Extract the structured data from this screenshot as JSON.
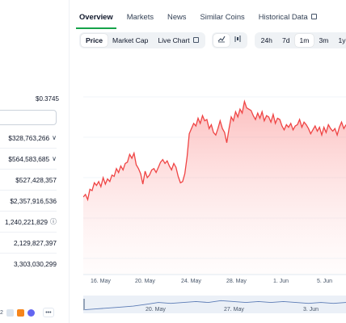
{
  "left": {
    "range_value": "$0.3745",
    "stats": [
      {
        "value": "$328,763,266",
        "suffix": "∨"
      },
      {
        "value": "$564,583,685",
        "suffix": "∨"
      },
      {
        "value": "$527,428,357",
        "suffix": ""
      },
      {
        "value": "$2,357,916,536",
        "suffix": ""
      },
      {
        "value": "1,240,221,829",
        "suffix": "ⓘ"
      },
      {
        "value": "2,129,827,397",
        "suffix": ""
      },
      {
        "value": "3,303,030,299",
        "suffix": ""
      }
    ],
    "icons_text": "2",
    "more_label": "•••"
  },
  "nav": {
    "tabs": [
      "Overview",
      "Markets",
      "News",
      "Similar Coins",
      "Historical Data"
    ]
  },
  "toolbar": {
    "chart_type": [
      "Price",
      "Market Cap",
      "Live Chart"
    ],
    "ranges": [
      "24h",
      "7d",
      "1m",
      "3m",
      "1y"
    ],
    "active_range": "1m"
  },
  "chart_data": {
    "type": "area",
    "x_labels": [
      "16. May",
      "20. May",
      "24. May",
      "28. May",
      "1. Jun",
      "5. Jun"
    ],
    "navigator_labels": [
      "20. May",
      "27. May",
      "3. Jun"
    ],
    "color": "#ef4444",
    "series": [
      {
        "values": [
          0.33,
          0.332,
          0.328,
          0.336,
          0.335,
          0.341,
          0.339,
          0.342,
          0.338,
          0.345,
          0.34,
          0.344,
          0.342,
          0.347,
          0.346,
          0.352,
          0.349,
          0.354,
          0.351,
          0.356,
          0.357,
          0.363,
          0.36,
          0.364,
          0.355,
          0.352,
          0.348,
          0.34,
          0.35,
          0.345,
          0.347,
          0.351,
          0.352,
          0.349,
          0.353,
          0.357,
          0.359,
          0.356,
          0.358,
          0.354,
          0.351,
          0.356,
          0.353,
          0.346,
          0.341,
          0.342,
          0.348,
          0.361,
          0.379,
          0.383,
          0.387,
          0.385,
          0.391,
          0.387,
          0.393,
          0.389,
          0.39,
          0.383,
          0.386,
          0.38,
          0.378,
          0.383,
          0.389,
          0.383,
          0.38,
          0.372,
          0.383,
          0.392,
          0.389,
          0.396,
          0.392,
          0.398,
          0.395,
          0.404,
          0.399,
          0.398,
          0.397,
          0.393,
          0.39,
          0.395,
          0.391,
          0.396,
          0.389,
          0.393,
          0.392,
          0.388,
          0.394,
          0.387,
          0.391,
          0.39,
          0.385,
          0.382,
          0.386,
          0.384,
          0.387,
          0.382,
          0.385,
          0.386,
          0.39,
          0.384,
          0.388,
          0.386,
          0.383,
          0.379,
          0.382,
          0.385,
          0.381,
          0.384,
          0.378,
          0.384,
          0.38,
          0.386,
          0.383,
          0.381,
          0.383,
          0.378,
          0.384,
          0.388,
          0.383,
          0.386
        ]
      }
    ],
    "navigator_values": [
      0.3,
      0.31,
      0.32,
      0.33,
      0.34,
      0.36,
      0.38,
      0.37,
      0.38,
      0.39,
      0.38,
      0.4,
      0.39,
      0.38,
      0.39,
      0.38,
      0.39,
      0.38,
      0.37,
      0.38,
      0.37,
      0.38
    ]
  }
}
